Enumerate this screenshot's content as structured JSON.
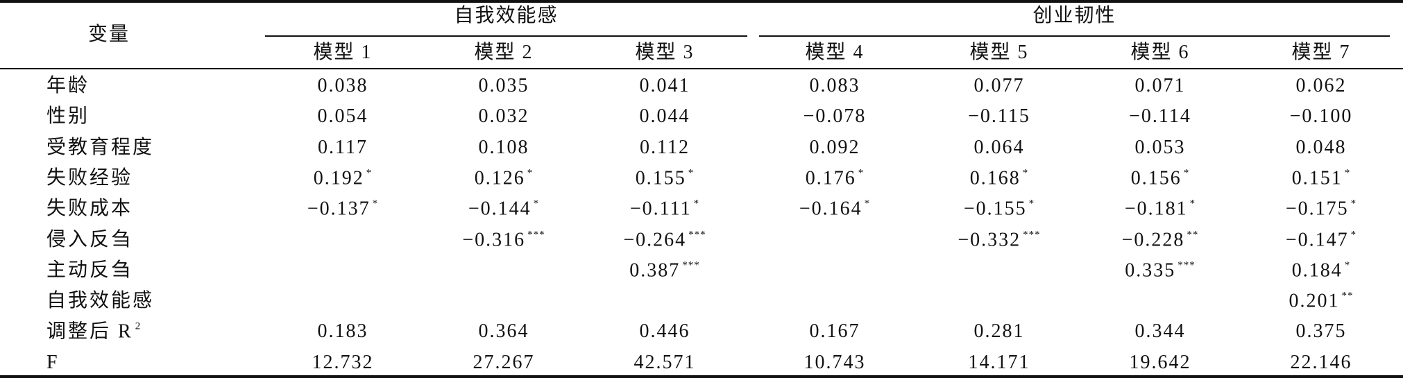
{
  "header": {
    "variable": "变量",
    "groups": [
      {
        "title": "自我效能感",
        "models": [
          "模型 1",
          "模型 2",
          "模型 3"
        ]
      },
      {
        "title": "创业韧性",
        "models": [
          "模型 4",
          "模型 5",
          "模型 6",
          "模型 7"
        ]
      }
    ]
  },
  "rows": [
    {
      "label": "年龄",
      "cells": [
        {
          "value": "0.038"
        },
        {
          "value": "0.035"
        },
        {
          "value": "0.041"
        },
        {
          "value": "0.083"
        },
        {
          "value": "0.077"
        },
        {
          "value": "0.071"
        },
        {
          "value": "0.062"
        }
      ]
    },
    {
      "label": "性别",
      "cells": [
        {
          "value": "0.054"
        },
        {
          "value": "0.032"
        },
        {
          "value": "0.044"
        },
        {
          "value": "−0.078"
        },
        {
          "value": "−0.115"
        },
        {
          "value": "−0.114"
        },
        {
          "value": "−0.100"
        }
      ]
    },
    {
      "label": "受教育程度",
      "cells": [
        {
          "value": "0.117"
        },
        {
          "value": "0.108"
        },
        {
          "value": "0.112"
        },
        {
          "value": "0.092"
        },
        {
          "value": "0.064"
        },
        {
          "value": "0.053"
        },
        {
          "value": "0.048"
        }
      ]
    },
    {
      "label": "失败经验",
      "cells": [
        {
          "value": "0.192",
          "sig": "*"
        },
        {
          "value": "0.126",
          "sig": "*"
        },
        {
          "value": "0.155",
          "sig": "*"
        },
        {
          "value": "0.176",
          "sig": "*"
        },
        {
          "value": "0.168",
          "sig": "*"
        },
        {
          "value": "0.156",
          "sig": "*"
        },
        {
          "value": "0.151",
          "sig": "*"
        }
      ]
    },
    {
      "label": "失败成本",
      "cells": [
        {
          "value": "−0.137",
          "sig": "*"
        },
        {
          "value": "−0.144",
          "sig": "*"
        },
        {
          "value": "−0.111",
          "sig": "*"
        },
        {
          "value": "−0.164",
          "sig": "*"
        },
        {
          "value": "−0.155",
          "sig": "*"
        },
        {
          "value": "−0.181",
          "sig": "*"
        },
        {
          "value": "−0.175",
          "sig": "*"
        }
      ]
    },
    {
      "label": "侵入反刍",
      "cells": [
        null,
        {
          "value": "−0.316",
          "sig": "***"
        },
        {
          "value": "−0.264",
          "sig": "***"
        },
        null,
        {
          "value": "−0.332",
          "sig": "***"
        },
        {
          "value": "−0.228",
          "sig": "**"
        },
        {
          "value": "−0.147",
          "sig": "*"
        }
      ]
    },
    {
      "label": "主动反刍",
      "cells": [
        null,
        null,
        {
          "value": "0.387",
          "sig": "***"
        },
        null,
        null,
        {
          "value": "0.335",
          "sig": "***"
        },
        {
          "value": "0.184",
          "sig": "*"
        }
      ]
    },
    {
      "label": "自我效能感",
      "cells": [
        null,
        null,
        null,
        null,
        null,
        null,
        {
          "value": "0.201",
          "sig": "**"
        }
      ]
    },
    {
      "label": "调整后 R",
      "label_sup": "2",
      "cells": [
        {
          "value": "0.183"
        },
        {
          "value": "0.364"
        },
        {
          "value": "0.446"
        },
        {
          "value": "0.167"
        },
        {
          "value": "0.281"
        },
        {
          "value": "0.344"
        },
        {
          "value": "0.375"
        }
      ]
    },
    {
      "label": "F",
      "cells": [
        {
          "value": "12.732"
        },
        {
          "value": "27.267"
        },
        {
          "value": "42.571"
        },
        {
          "value": "10.743"
        },
        {
          "value": "14.171"
        },
        {
          "value": "19.642"
        },
        {
          "value": "22.146"
        }
      ]
    }
  ]
}
